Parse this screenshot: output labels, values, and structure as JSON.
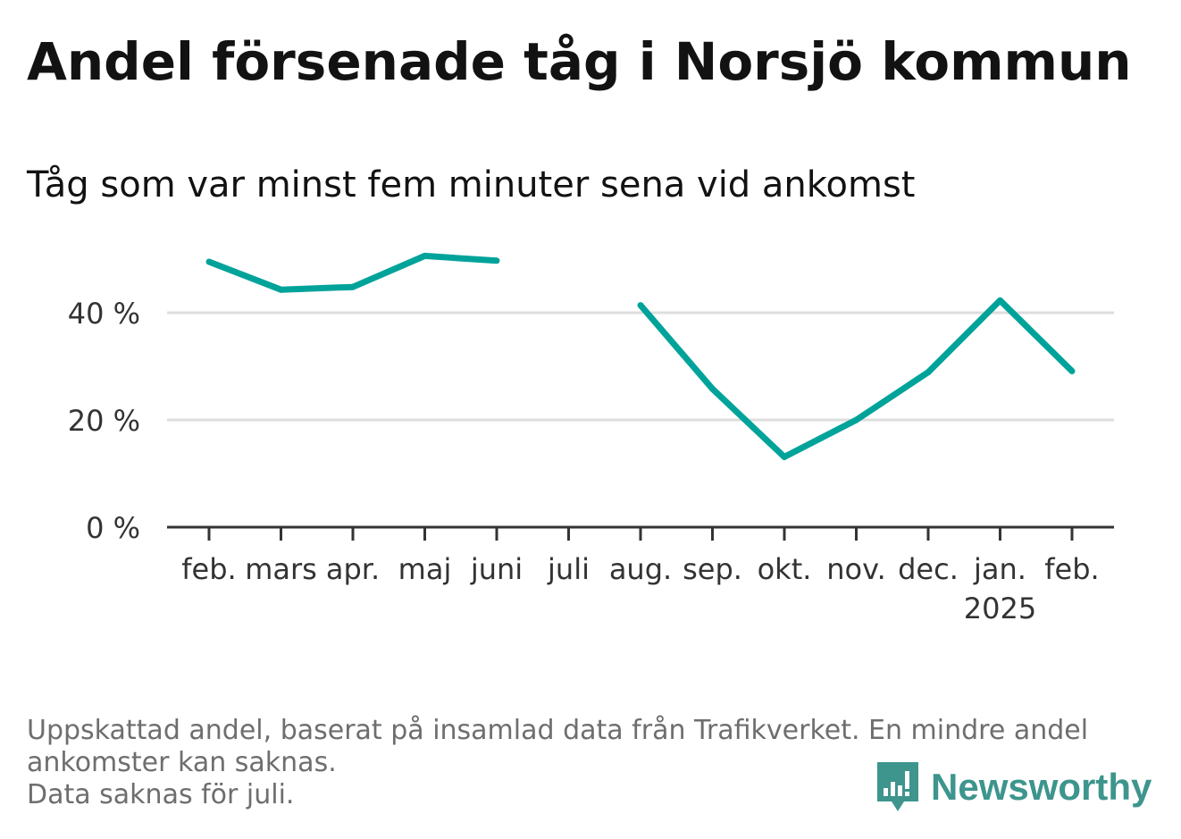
{
  "title": "Andel försenade tåg i Norsjö kommun",
  "subtitle": "Tåg som var minst fem minuter sena vid ankomst",
  "footnote": {
    "line1": "Uppskattad andel, baserat på insamlad data från Trafikverket. En mindre andel",
    "line2": "ankomster kan saknas.",
    "line3": "Data saknas för juli."
  },
  "brand": {
    "name": "Newsworthy",
    "icon": "newsworthy-logo-icon",
    "color": "#3d958d"
  },
  "colors": {
    "line": "#00a39a",
    "grid": "#dddddd",
    "axis": "#333333"
  },
  "chart_data": {
    "type": "line",
    "title": "Andel försenade tåg i Norsjö kommun",
    "xlabel": "",
    "ylabel": "",
    "ylim": [
      0,
      52
    ],
    "yticks": [
      0,
      20,
      40
    ],
    "ytick_labels": [
      "0 %",
      "20 %",
      "40 %"
    ],
    "grid": true,
    "categories": [
      "feb.",
      "mars",
      "apr.",
      "maj",
      "juni",
      "juli",
      "aug.",
      "sep.",
      "okt.",
      "nov.",
      "dec.",
      "jan.",
      "feb."
    ],
    "year_labels": [
      "",
      "",
      "",
      "",
      "",
      "",
      "",
      "",
      "",
      "",
      "",
      "2025",
      ""
    ],
    "series": [
      {
        "name": "Andel försenade tåg",
        "values": [
          49.5,
          44.3,
          44.8,
          50.6,
          49.7,
          null,
          41.4,
          25.8,
          13.1,
          20.0,
          28.9,
          42.3,
          29.1
        ]
      }
    ]
  }
}
